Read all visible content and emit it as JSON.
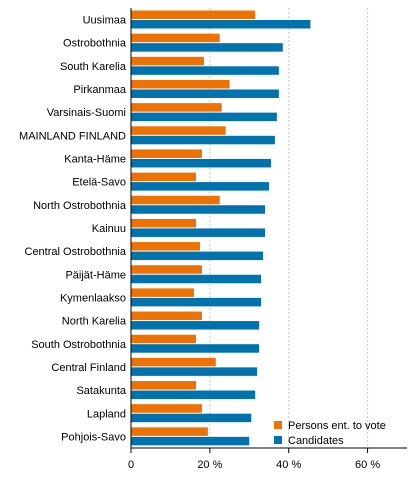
{
  "chart_data": {
    "type": "bar",
    "orientation": "horizontal",
    "categories": [
      "Uusimaa",
      "Ostrobothnia",
      "South Karelia",
      "Pirkanmaa",
      "Varsinais-Suomi",
      "MAINLAND FINLAND",
      "Kanta-Häme",
      "Etelä-Savo",
      "North Ostrobothnia",
      "Kainuu",
      "Central Ostrobothnia",
      "Päijät-Häme",
      "Kymenlaakso",
      "North Karelia",
      "South Ostrobothnia",
      "Central Finland",
      "Satakunta",
      "Lapland",
      "Pohjois-Savo"
    ],
    "series": [
      {
        "name": "Persons ent. to vote",
        "color": "#ed7203",
        "values": [
          31.5,
          22.5,
          18.5,
          25.0,
          23.0,
          24.0,
          18.0,
          16.5,
          22.5,
          16.5,
          17.5,
          18.0,
          16.0,
          18.0,
          16.5,
          21.5,
          16.5,
          18.0,
          19.5
        ]
      },
      {
        "name": "Candidates",
        "color": "#0072ae",
        "values": [
          45.5,
          38.5,
          37.5,
          37.5,
          37.0,
          36.5,
          35.5,
          35.0,
          34.0,
          34.0,
          33.5,
          33.0,
          33.0,
          32.5,
          32.5,
          32.0,
          31.5,
          30.5,
          30.0
        ]
      }
    ],
    "xlim": [
      0,
      70
    ],
    "ticks": [
      {
        "value": 0,
        "label": "0"
      },
      {
        "value": 20,
        "label": "20 %"
      },
      {
        "value": 40,
        "label": "40 %"
      },
      {
        "value": 60,
        "label": "60 %"
      }
    ],
    "grid": true,
    "legend_position": "bottom-right"
  }
}
